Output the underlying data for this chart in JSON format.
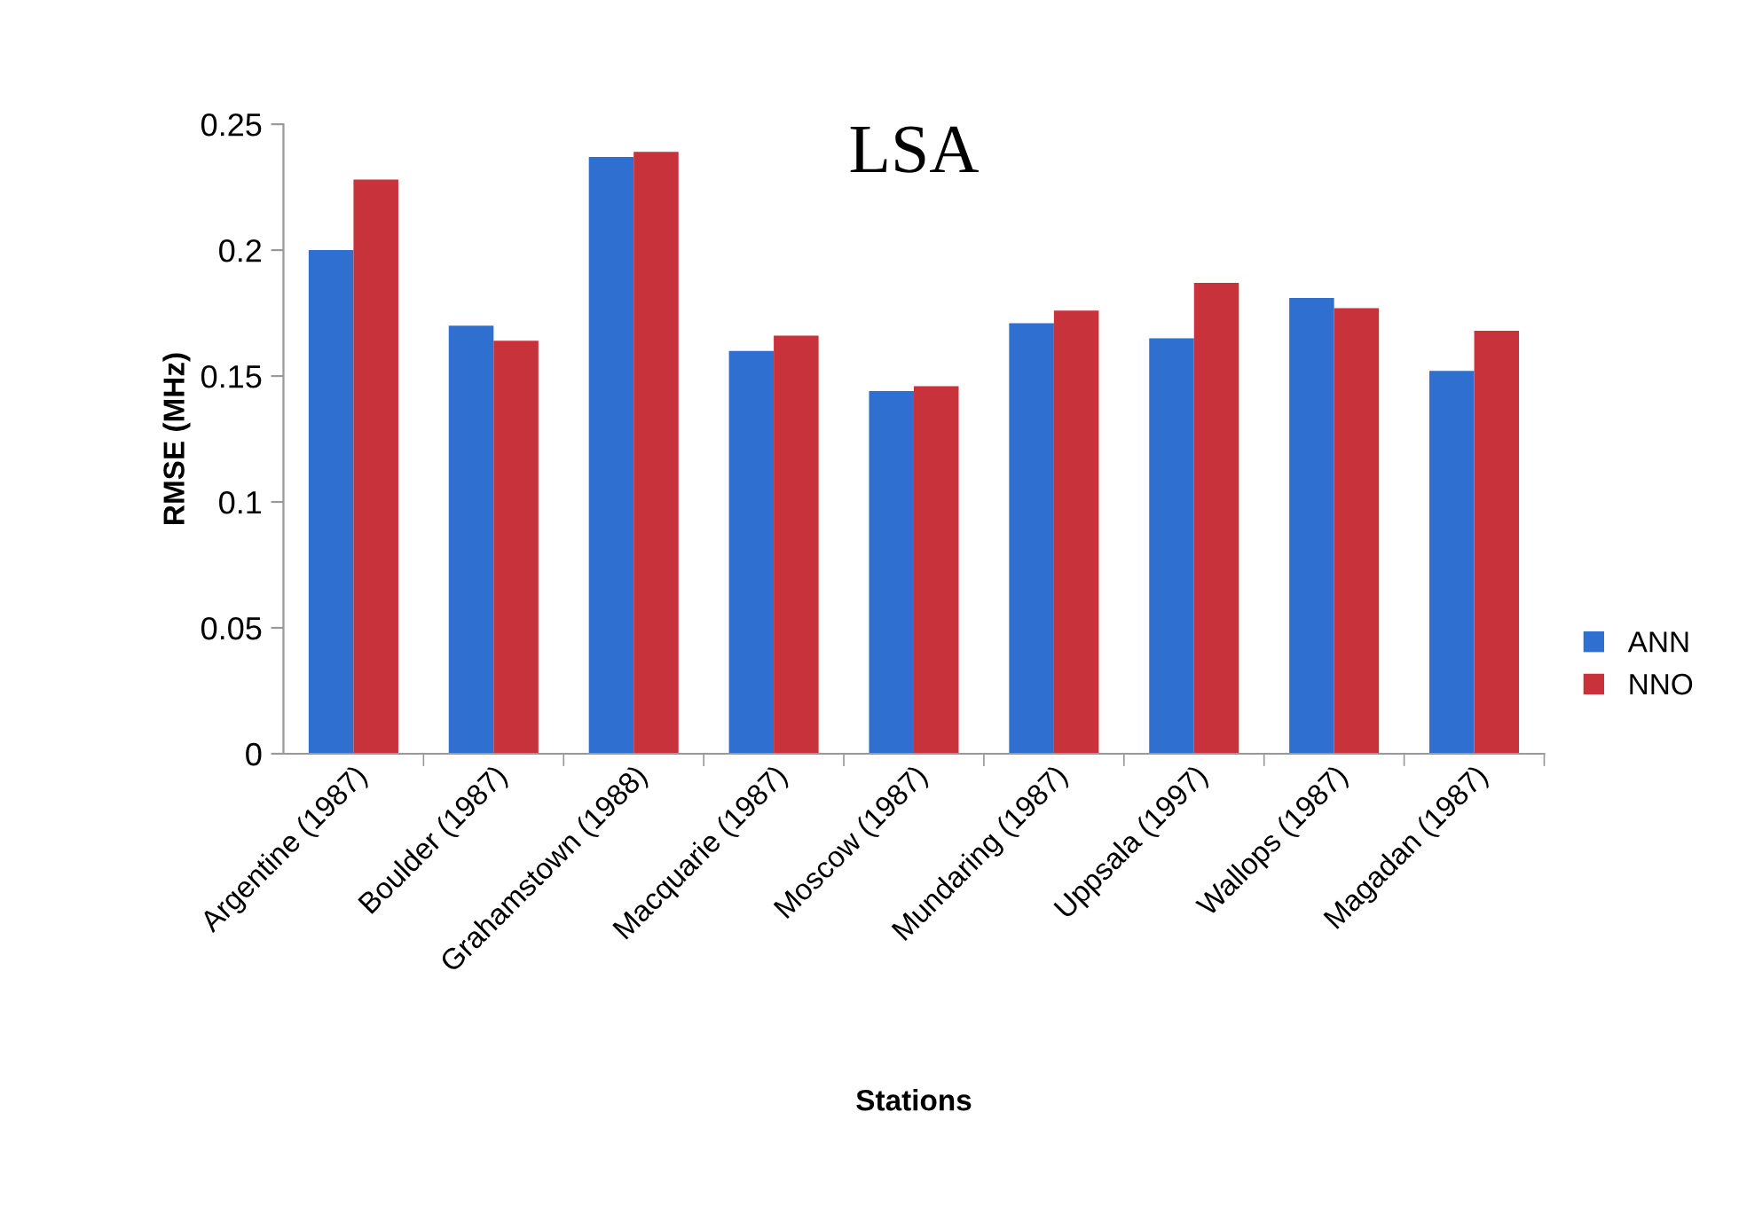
{
  "chart_data": {
    "type": "bar",
    "title": "LSA",
    "xlabel": "Stations",
    "ylabel": "RMSE (MHz)",
    "categories": [
      "Argentine (1987)",
      "Boulder (1987)",
      "Grahamstown (1988)",
      "Macquarie (1987)",
      "Moscow (1987)",
      "Mundaring (1987)",
      "Uppsala (1997)",
      "Wallops (1987)",
      "Magadan (1987)"
    ],
    "series": [
      {
        "name": "ANN",
        "color": "#2e6fd0",
        "values": [
          0.2,
          0.17,
          0.237,
          0.16,
          0.144,
          0.171,
          0.165,
          0.181,
          0.152
        ]
      },
      {
        "name": "NNO",
        "color": "#c8323a",
        "values": [
          0.228,
          0.164,
          0.239,
          0.166,
          0.146,
          0.176,
          0.187,
          0.177,
          0.168
        ]
      }
    ],
    "ylim": [
      0,
      0.25
    ],
    "yticks": [
      0,
      0.05,
      0.1,
      0.15,
      0.2,
      0.25
    ],
    "grid": false,
    "legend": "right"
  }
}
